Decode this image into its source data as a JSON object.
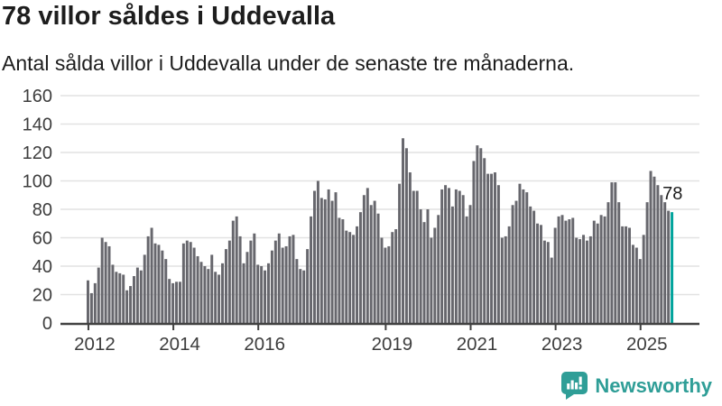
{
  "header": {
    "title": "78 villor såldes i Uddevalla",
    "subtitle": "Antal sålda villor i Uddevalla under de senaste tre månaderna."
  },
  "footer": {
    "brand": "Newsworthy"
  },
  "chart_data": {
    "type": "bar",
    "title": "78 villor såldes i Uddevalla",
    "subtitle": "Antal sålda villor i Uddevalla under de senaste tre månaderna.",
    "x_start_year": 2012,
    "x_frequency": "monthly",
    "values": [
      30,
      21,
      28,
      39,
      60,
      57,
      54,
      41,
      36,
      35,
      34,
      23,
      26,
      33,
      39,
      37,
      48,
      61,
      67,
      56,
      55,
      51,
      45,
      31,
      28,
      29,
      29,
      56,
      58,
      57,
      53,
      47,
      43,
      40,
      38,
      48,
      36,
      34,
      42,
      52,
      58,
      72,
      75,
      61,
      42,
      50,
      58,
      63,
      41,
      40,
      37,
      42,
      51,
      58,
      63,
      53,
      54,
      61,
      62,
      45,
      38,
      37,
      52,
      75,
      93,
      100,
      88,
      87,
      94,
      86,
      92,
      74,
      73,
      65,
      64,
      62,
      68,
      78,
      90,
      95,
      83,
      86,
      77,
      60,
      53,
      54,
      64,
      66,
      98,
      130,
      123,
      106,
      93,
      93,
      80,
      71,
      80,
      60,
      67,
      76,
      94,
      97,
      95,
      82,
      94,
      93,
      90,
      75,
      83,
      114,
      125,
      123,
      116,
      105,
      105,
      106,
      97,
      60,
      61,
      68,
      83,
      86,
      98,
      94,
      92,
      82,
      79,
      70,
      69,
      58,
      57,
      46,
      67,
      75,
      76,
      72,
      73,
      74,
      60,
      59,
      62,
      58,
      61,
      72,
      70,
      76,
      75,
      85,
      99,
      99,
      85,
      68,
      68,
      67,
      55,
      53,
      45,
      62,
      85,
      107,
      103,
      97,
      90,
      85,
      79,
      78
    ],
    "highlight_last_value": 78,
    "annotation_label": "78",
    "ylim": [
      0,
      160
    ],
    "yticks": [
      0,
      20,
      40,
      60,
      80,
      100,
      120,
      140,
      160
    ],
    "xticks": [
      "2012",
      "2014",
      "2016",
      "2019",
      "2021",
      "2023",
      "2025"
    ],
    "grid": true,
    "legend": "none",
    "colors": {
      "bar": "#67676d",
      "highlight": "#00a49c",
      "grid": "#e2e2e2",
      "axis": "#414141",
      "tick_text": "#3d3d3d",
      "annotation_text": "#1d1d1d",
      "brand": "#2f9e97"
    }
  }
}
